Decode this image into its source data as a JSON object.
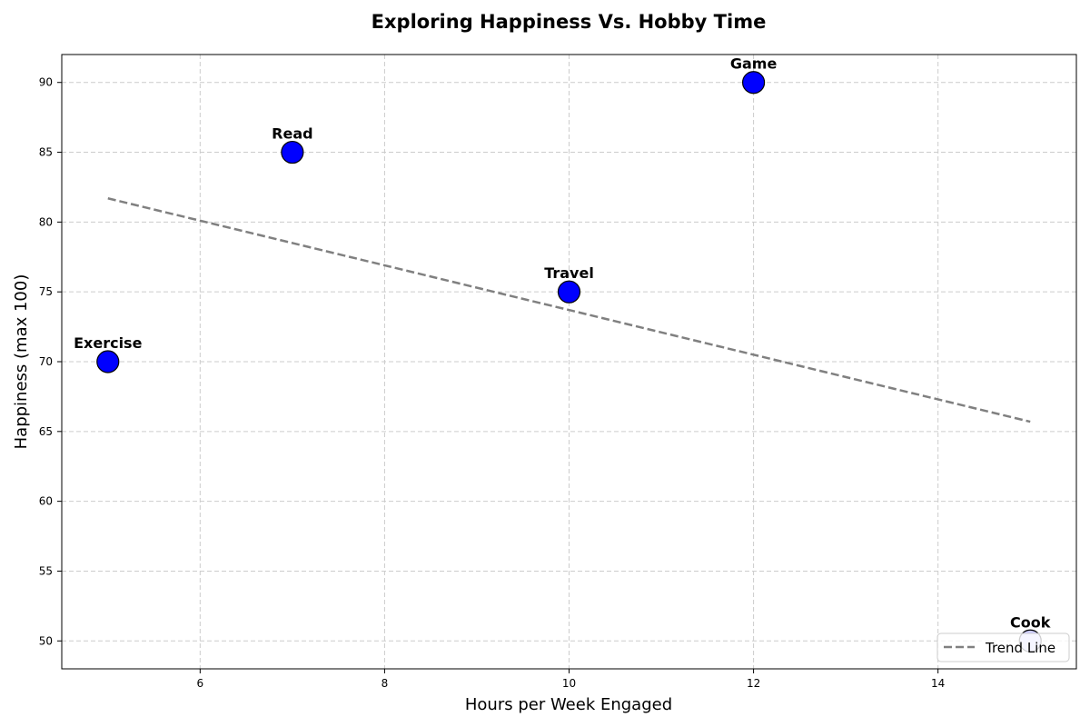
{
  "chart_data": {
    "type": "scatter",
    "title": "Exploring Happiness Vs. Hobby Time",
    "xlabel": "Hours per Week Engaged",
    "ylabel": "Happiness (max 100)",
    "xlim": [
      4.5,
      15.5
    ],
    "ylim": [
      48,
      92
    ],
    "xticks": [
      6,
      8,
      10,
      12,
      14
    ],
    "yticks": [
      50,
      55,
      60,
      65,
      70,
      75,
      80,
      85,
      90
    ],
    "grid": true,
    "points": [
      {
        "label": "Exercise",
        "x": 5,
        "y": 70,
        "color": "#0000ff"
      },
      {
        "label": "Read",
        "x": 7,
        "y": 85,
        "color": "#0000ff"
      },
      {
        "label": "Travel",
        "x": 10,
        "y": 75,
        "color": "#0000ff"
      },
      {
        "label": "Game",
        "x": 12,
        "y": 90,
        "color": "#0000ff"
      },
      {
        "label": "Cook",
        "x": 15,
        "y": 50,
        "color": "#ccccff"
      }
    ],
    "trend_line": {
      "name": "Trend Line",
      "x": [
        5,
        15
      ],
      "y": [
        81.7,
        65.7
      ],
      "color": "#808080"
    },
    "legend": {
      "placement": "bottom-right",
      "entries": [
        "Trend Line"
      ]
    }
  }
}
